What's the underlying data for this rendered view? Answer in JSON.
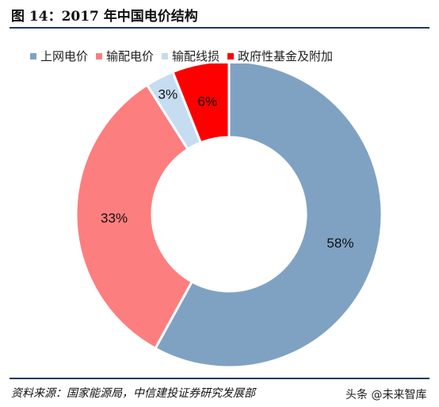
{
  "header": {
    "title": "图 14：2017 年中国电价结构"
  },
  "footer": {
    "source": "资料来源：国家能源局，中信建投证券研究发展部",
    "watermark": "头条 @未来智库"
  },
  "chart_data": {
    "type": "pie",
    "donut": true,
    "title": "图 14：2017 年中国电价结构",
    "legend_position": "top",
    "series": [
      {
        "name": "上网电价",
        "value": 58,
        "label": "58%",
        "color": "#7fa2c3"
      },
      {
        "name": "输配电价",
        "value": 33,
        "label": "33%",
        "color": "#fd7e7e"
      },
      {
        "name": "输配线损",
        "value": 3,
        "label": "3%",
        "color": "#c6dcf0"
      },
      {
        "name": "政府性基金及附加",
        "value": 6,
        "label": "6%",
        "color": "#ff0000"
      }
    ]
  }
}
